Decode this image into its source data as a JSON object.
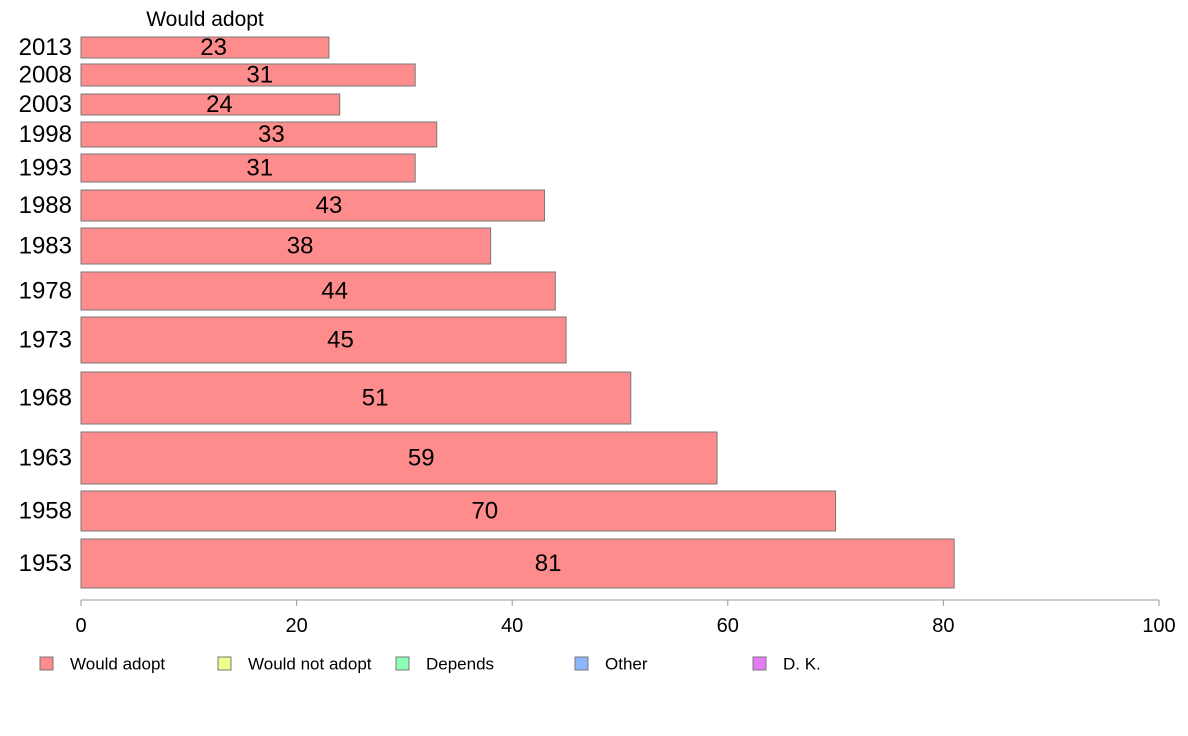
{
  "chart_data": {
    "type": "bar",
    "orientation": "horizontal",
    "title": "Would adopt",
    "categories": [
      "2013",
      "2008",
      "2003",
      "1998",
      "1993",
      "1988",
      "1983",
      "1978",
      "1973",
      "1968",
      "1963",
      "1958",
      "1953"
    ],
    "series": [
      {
        "name": "Would adopt",
        "color": "#ff8c8c",
        "values": [
          23,
          31,
          24,
          33,
          31,
          43,
          38,
          44,
          45,
          51,
          59,
          70,
          81
        ]
      }
    ],
    "data_labels": [
      "23",
      "31",
      "24",
      "33",
      "31",
      "43",
      "38",
      "44",
      "45",
      "51",
      "59",
      "70",
      "81"
    ],
    "xlim": [
      0,
      100
    ],
    "x_ticks": [
      0,
      20,
      40,
      60,
      80,
      100
    ],
    "x_tick_labels": [
      "0",
      "20",
      "40",
      "60",
      "80",
      "100"
    ],
    "grid": false,
    "legend_position": "bottom",
    "legend": [
      {
        "label": "Would adopt",
        "color": "#ff8c8c"
      },
      {
        "label": "Would not adopt",
        "color": "#eeff8c"
      },
      {
        "label": "Depends",
        "color": "#8cffb4"
      },
      {
        "label": "Other",
        "color": "#8cb4ff"
      },
      {
        "label": "D. K.",
        "color": "#e57cf5"
      }
    ]
  }
}
